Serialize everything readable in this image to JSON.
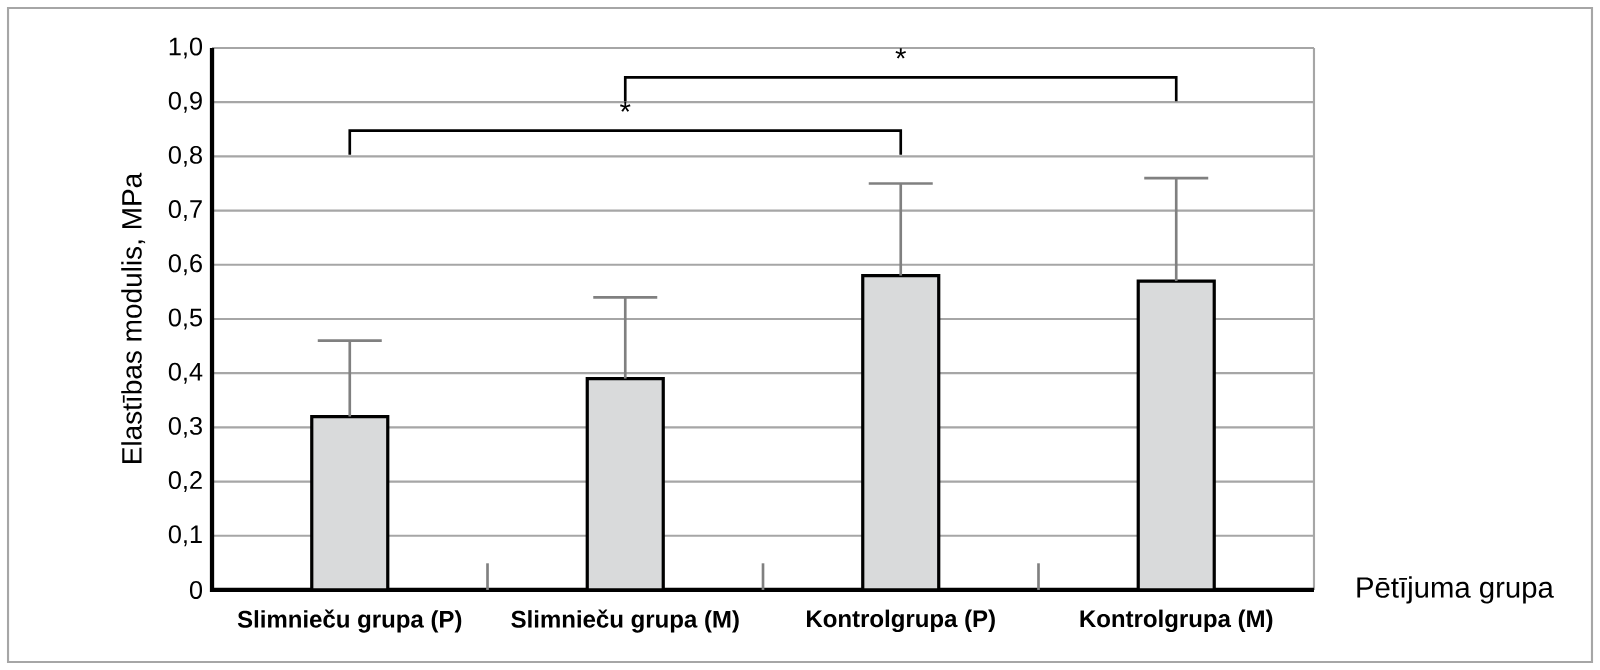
{
  "chart_data": {
    "type": "bar",
    "xlabel": "Pētījuma grupa",
    "ylabel": "Elastības modulis, MPa",
    "categories": [
      "Slimnieču grupa (P)",
      "Slimnieču grupa (M)",
      "Kontrolgrupa (P)",
      "Kontrolgrupa (M)"
    ],
    "values": [
      0.32,
      0.39,
      0.58,
      0.57
    ],
    "errors": [
      [
        0.32,
        0.46
      ],
      [
        0.39,
        0.54
      ],
      [
        0.58,
        0.75
      ],
      [
        0.57,
        0.76
      ]
    ],
    "color": "#d9dadb",
    "ylim": [
      0,
      1.0
    ],
    "yticks": [
      0,
      {
        "value": 0.1,
        "label": "0,1"
      },
      {
        "value": 0.2,
        "label": "0,2"
      },
      {
        "value": 0.3,
        "label": "0,3"
      },
      {
        "value": 0.4,
        "label": "0,4"
      },
      {
        "value": 0.5,
        "label": "0,5"
      },
      {
        "value": 0.6,
        "label": "0,6"
      },
      {
        "value": 0.7,
        "label": "0,7"
      },
      {
        "value": 0.8,
        "label": "0,8"
      },
      {
        "value": 0.9,
        "label": "0,9"
      },
      {
        "value": 1.0,
        "label": "1,0"
      }
    ],
    "grid": "y",
    "annotations": [
      "*",
      "*"
    ]
  }
}
